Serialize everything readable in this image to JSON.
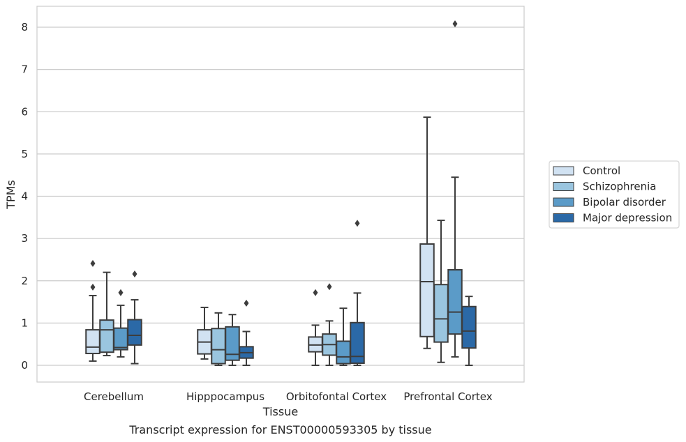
{
  "chart_data": {
    "type": "box",
    "title": "",
    "caption": "Transcript expression for ENST00000593305 by tissue",
    "xlabel": "Tissue",
    "ylabel": "TPMs",
    "ylim": [
      -0.4,
      8.5
    ],
    "yticks": [
      0,
      1,
      2,
      3,
      4,
      5,
      6,
      7,
      8
    ],
    "grid": "horizontal",
    "legend_position": "right",
    "categories": [
      "Cerebellum",
      "Hipppocampus",
      "Orbitofontal Cortex",
      "Prefrontal Cortex"
    ],
    "series": [
      {
        "name": "Control",
        "color": "#d1e2f2",
        "boxes": [
          {
            "whislo": 0.1,
            "q1": 0.28,
            "med": 0.43,
            "q3": 0.84,
            "whishi": 1.65,
            "fliers": [
              1.85,
              2.41
            ]
          },
          {
            "whislo": 0.15,
            "q1": 0.27,
            "med": 0.55,
            "q3": 0.84,
            "whishi": 1.37,
            "fliers": []
          },
          {
            "whislo": 0.0,
            "q1": 0.32,
            "med": 0.48,
            "q3": 0.67,
            "whishi": 0.95,
            "fliers": [
              1.72
            ]
          },
          {
            "whislo": 0.4,
            "q1": 0.68,
            "med": 1.98,
            "q3": 2.87,
            "whishi": 5.87,
            "fliers": []
          }
        ]
      },
      {
        "name": "Schizophrenia",
        "color": "#9ac5df",
        "boxes": [
          {
            "whislo": 0.23,
            "q1": 0.31,
            "med": 0.84,
            "q3": 1.07,
            "whishi": 2.2,
            "fliers": []
          },
          {
            "whislo": 0.0,
            "q1": 0.04,
            "med": 0.37,
            "q3": 0.87,
            "whishi": 1.24,
            "fliers": []
          },
          {
            "whislo": 0.0,
            "q1": 0.24,
            "med": 0.49,
            "q3": 0.74,
            "whishi": 1.05,
            "fliers": [
              1.86
            ]
          },
          {
            "whislo": 0.07,
            "q1": 0.55,
            "med": 1.1,
            "q3": 1.91,
            "whishi": 3.43,
            "fliers": []
          }
        ]
      },
      {
        "name": "Bipolar disorder",
        "color": "#5b9bc8",
        "boxes": [
          {
            "whislo": 0.2,
            "q1": 0.37,
            "med": 0.42,
            "q3": 0.88,
            "whishi": 1.42,
            "fliers": [
              1.72
            ]
          },
          {
            "whislo": 0.0,
            "q1": 0.12,
            "med": 0.26,
            "q3": 0.91,
            "whishi": 1.2,
            "fliers": []
          },
          {
            "whislo": 0.0,
            "q1": 0.04,
            "med": 0.2,
            "q3": 0.57,
            "whishi": 1.35,
            "fliers": []
          },
          {
            "whislo": 0.2,
            "q1": 0.74,
            "med": 1.26,
            "q3": 2.26,
            "whishi": 4.45,
            "fliers": [
              8.08
            ]
          }
        ]
      },
      {
        "name": "Major depression",
        "color": "#2b69a7",
        "boxes": [
          {
            "whislo": 0.04,
            "q1": 0.48,
            "med": 0.71,
            "q3": 1.08,
            "whishi": 1.55,
            "fliers": [
              2.16
            ]
          },
          {
            "whislo": 0.0,
            "q1": 0.17,
            "med": 0.3,
            "q3": 0.44,
            "whishi": 0.8,
            "fliers": [
              1.47
            ]
          },
          {
            "whislo": 0.0,
            "q1": 0.05,
            "med": 0.21,
            "q3": 1.01,
            "whishi": 1.71,
            "fliers": [
              3.36
            ]
          },
          {
            "whislo": 0.0,
            "q1": 0.41,
            "med": 0.81,
            "q3": 1.39,
            "whishi": 1.63,
            "fliers": []
          }
        ]
      }
    ]
  }
}
